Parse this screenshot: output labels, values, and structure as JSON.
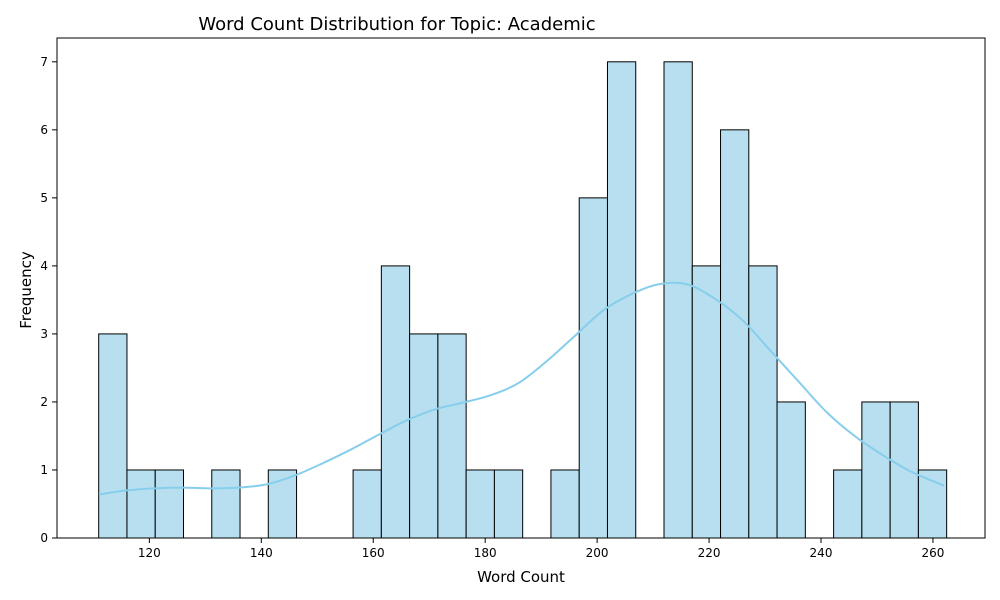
{
  "chart_data": {
    "type": "bar",
    "title": "Word Count Distribution for Topic: Academic",
    "xlabel": "Word Count",
    "ylabel": "Frequency",
    "xlim": [
      103.5,
      269.3
    ],
    "ylim": [
      0,
      7.35
    ],
    "x_ticks": [
      120,
      140,
      160,
      180,
      200,
      220,
      240,
      260
    ],
    "y_ticks": [
      0,
      1,
      2,
      3,
      4,
      5,
      6,
      7
    ],
    "bin_edges": [
      110.95,
      116.0,
      121.05,
      126.1,
      131.15,
      136.2,
      141.25,
      146.3,
      151.35,
      156.4,
      161.45,
      166.5,
      171.55,
      176.6,
      181.65,
      186.7,
      191.75,
      196.8,
      201.85,
      206.9,
      211.95,
      217.0,
      222.05,
      227.1,
      232.15,
      237.2,
      242.25,
      247.3,
      252.35,
      257.4,
      262.45
    ],
    "values": [
      3,
      1,
      1,
      0,
      1,
      0,
      1,
      0,
      0,
      1,
      4,
      3,
      3,
      1,
      1,
      0,
      1,
      5,
      7,
      0,
      7,
      4,
      6,
      4,
      2,
      0,
      1,
      2,
      2,
      1
    ],
    "kde": {
      "x": [
        111,
        116,
        121,
        126,
        131,
        136,
        141,
        146,
        151,
        156,
        161,
        166,
        171,
        176,
        181,
        186,
        191,
        196,
        201,
        206,
        211,
        216,
        221,
        226,
        231,
        236,
        241,
        246,
        251,
        256,
        262
      ],
      "y": [
        0.64,
        0.7,
        0.73,
        0.74,
        0.73,
        0.74,
        0.79,
        0.92,
        1.1,
        1.3,
        1.52,
        1.73,
        1.89,
        1.99,
        2.1,
        2.28,
        2.6,
        2.97,
        3.34,
        3.58,
        3.73,
        3.73,
        3.52,
        3.2,
        2.75,
        2.3,
        1.85,
        1.5,
        1.22,
        0.98,
        0.77
      ]
    },
    "colors": {
      "bar_fill": "#b7dff0",
      "bar_edge": "#000000",
      "kde_line": "#87ceeb"
    },
    "grid": false,
    "legend": "none"
  }
}
